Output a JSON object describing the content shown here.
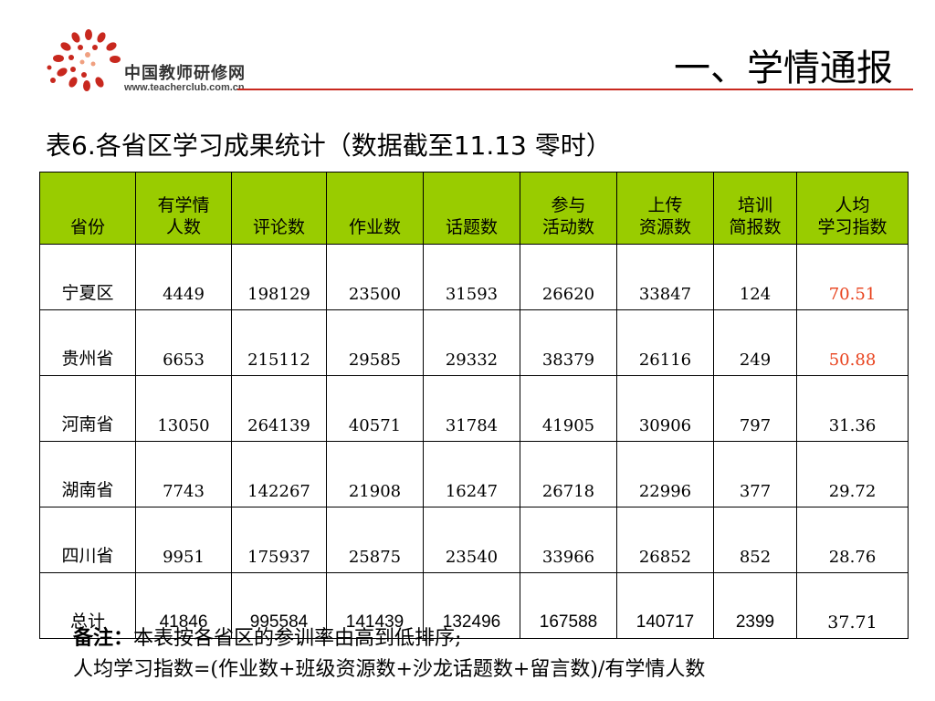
{
  "logo": {
    "name": "中国教师研修网",
    "url": "www.teacherclub.com.cn"
  },
  "header": {
    "title": "一、学情通报"
  },
  "table_title": "表6.各省区学习成果统计（数据截至11.13 零时）",
  "table": {
    "header_color": "#99cc00",
    "highlight_color": "#e8411c",
    "columns": [
      {
        "line1": "",
        "line2": "省份"
      },
      {
        "line1": "有学情",
        "line2": "人数"
      },
      {
        "line1": "",
        "line2": "评论数"
      },
      {
        "line1": "",
        "line2": "作业数"
      },
      {
        "line1": "",
        "line2": "话题数"
      },
      {
        "line1": "参与",
        "line2": "活动数"
      },
      {
        "line1": "上传",
        "line2": "资源数"
      },
      {
        "line1": "培训",
        "line2": "简报数"
      },
      {
        "line1": "人均",
        "line2": "学习指数"
      }
    ],
    "rows": [
      {
        "province": "宁夏区",
        "people": "4449",
        "comments": "198129",
        "homework": "23500",
        "topics": "31593",
        "activities": "26620",
        "resources": "33847",
        "briefs": "124",
        "index": "70.51",
        "highlight": true
      },
      {
        "province": "贵州省",
        "people": "6653",
        "comments": "215112",
        "homework": "29585",
        "topics": "29332",
        "activities": "38379",
        "resources": "26116",
        "briefs": "249",
        "index": "50.88",
        "highlight": true
      },
      {
        "province": "河南省",
        "people": "13050",
        "comments": "264139",
        "homework": "40571",
        "topics": "31784",
        "activities": "41905",
        "resources": "30906",
        "briefs": "797",
        "index": "31.36",
        "highlight": false
      },
      {
        "province": "湖南省",
        "people": "7743",
        "comments": "142267",
        "homework": "21908",
        "topics": "16247",
        "activities": "26718",
        "resources": "22996",
        "briefs": "377",
        "index": "29.72",
        "highlight": false
      },
      {
        "province": "四川省",
        "people": "9951",
        "comments": "175937",
        "homework": "25875",
        "topics": "23540",
        "activities": "33966",
        "resources": "26852",
        "briefs": "852",
        "index": "28.76",
        "highlight": false
      }
    ],
    "total": {
      "province": "总计",
      "people": "41846",
      "comments": "995584",
      "homework": "141439",
      "topics": "132496",
      "activities": "167588",
      "resources": "140717",
      "briefs": "2399",
      "index": "37.71"
    }
  },
  "notes": {
    "label": "备注：",
    "line1": "本表按各省区的参训率由高到低排序;",
    "line2": "人均学习指数=(作业数+班级资源数+沙龙话题数+留言数)/有学情人数"
  }
}
